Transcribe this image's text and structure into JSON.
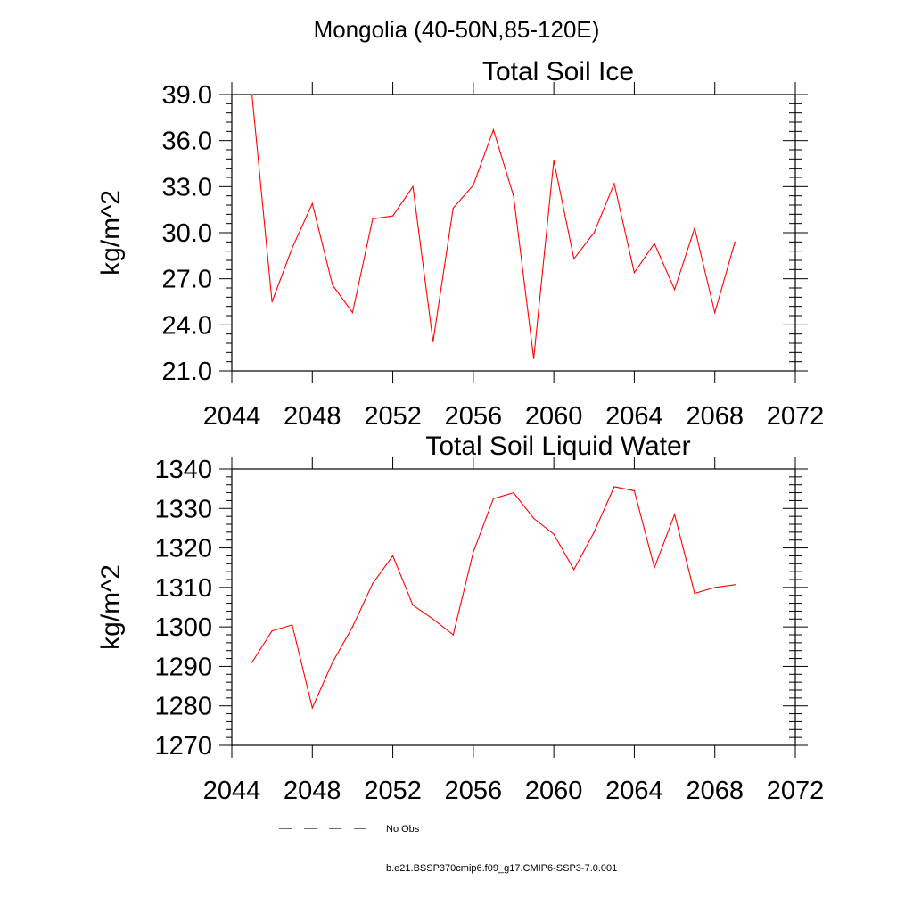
{
  "figure": {
    "suptitle": "Mongolia (40-50N,85-120E)"
  },
  "chart_data": [
    {
      "type": "line",
      "title": "Total Soil Ice",
      "xlabel": "",
      "ylabel": "kg/m^2",
      "xlim": [
        2044,
        2072
      ],
      "ylim": [
        21,
        39
      ],
      "xticks": [
        2044,
        2048,
        2052,
        2056,
        2060,
        2064,
        2068,
        2072
      ],
      "xtick_labels": [
        "2044",
        "2048",
        "2052",
        "2056",
        "2060",
        "2064",
        "2068",
        "2072"
      ],
      "yticks": [
        21,
        24,
        27,
        30,
        33,
        36,
        39
      ],
      "ytick_labels": [
        "21.0",
        "24.0",
        "27.0",
        "30.0",
        "33.0",
        "36.0",
        "39.0"
      ],
      "grid": false,
      "series": [
        {
          "name": "b.e21.BSSP370cmip6.f09_g17.CMIP6-SSP3-7.0.001",
          "color": "#ff0000",
          "x": [
            2045,
            2046,
            2047,
            2048,
            2049,
            2050,
            2051,
            2052,
            2053,
            2054,
            2055,
            2056,
            2057,
            2058,
            2059,
            2060,
            2061,
            2062,
            2063,
            2064,
            2065,
            2066,
            2067,
            2068,
            2069
          ],
          "values": [
            39.0,
            25.5,
            29.0,
            31.9,
            26.6,
            24.8,
            30.9,
            31.1,
            33.0,
            22.9,
            31.6,
            33.1,
            36.7,
            32.4,
            21.8,
            34.7,
            28.3,
            30.0,
            33.2,
            27.4,
            29.3,
            26.3,
            30.3,
            24.8,
            29.4
          ]
        }
      ]
    },
    {
      "type": "line",
      "title": "Total Soil Liquid Water",
      "xlabel": "",
      "ylabel": "kg/m^2",
      "xlim": [
        2044,
        2072
      ],
      "ylim": [
        1270,
        1340
      ],
      "xticks": [
        2044,
        2048,
        2052,
        2056,
        2060,
        2064,
        2068,
        2072
      ],
      "xtick_labels": [
        "2044",
        "2048",
        "2052",
        "2056",
        "2060",
        "2064",
        "2068",
        "2072"
      ],
      "yticks": [
        1270,
        1280,
        1290,
        1300,
        1310,
        1320,
        1330,
        1340
      ],
      "ytick_labels": [
        "1270",
        "1280",
        "1290",
        "1300",
        "1310",
        "1320",
        "1330",
        "1340"
      ],
      "grid": false,
      "series": [
        {
          "name": "b.e21.BSSP370cmip6.f09_g17.CMIP6-SSP3-7.0.001",
          "color": "#ff0000",
          "x": [
            2045,
            2046,
            2047,
            2048,
            2049,
            2050,
            2051,
            2052,
            2053,
            2054,
            2055,
            2056,
            2057,
            2058,
            2059,
            2060,
            2061,
            2062,
            2063,
            2064,
            2065,
            2066,
            2067,
            2068,
            2069
          ],
          "values": [
            1291,
            1299,
            1300.5,
            1279.5,
            1291,
            1300,
            1311,
            1318,
            1305.5,
            1302,
            1298,
            1319,
            1332.5,
            1334,
            1327.5,
            1323.5,
            1314.5,
            1324,
            1335.5,
            1334.5,
            1315,
            1328.5,
            1308.5,
            1310,
            1310.7
          ]
        }
      ]
    }
  ],
  "legend": {
    "position": "bottom",
    "entries": [
      {
        "label": "No Obs",
        "color": "#6a6a8a",
        "style": "dashed"
      },
      {
        "label": "b.e21.BSSP370cmip6.f09_g17.CMIP6-SSP3-7.0.001",
        "color": "#ff0000",
        "style": "solid"
      }
    ]
  }
}
